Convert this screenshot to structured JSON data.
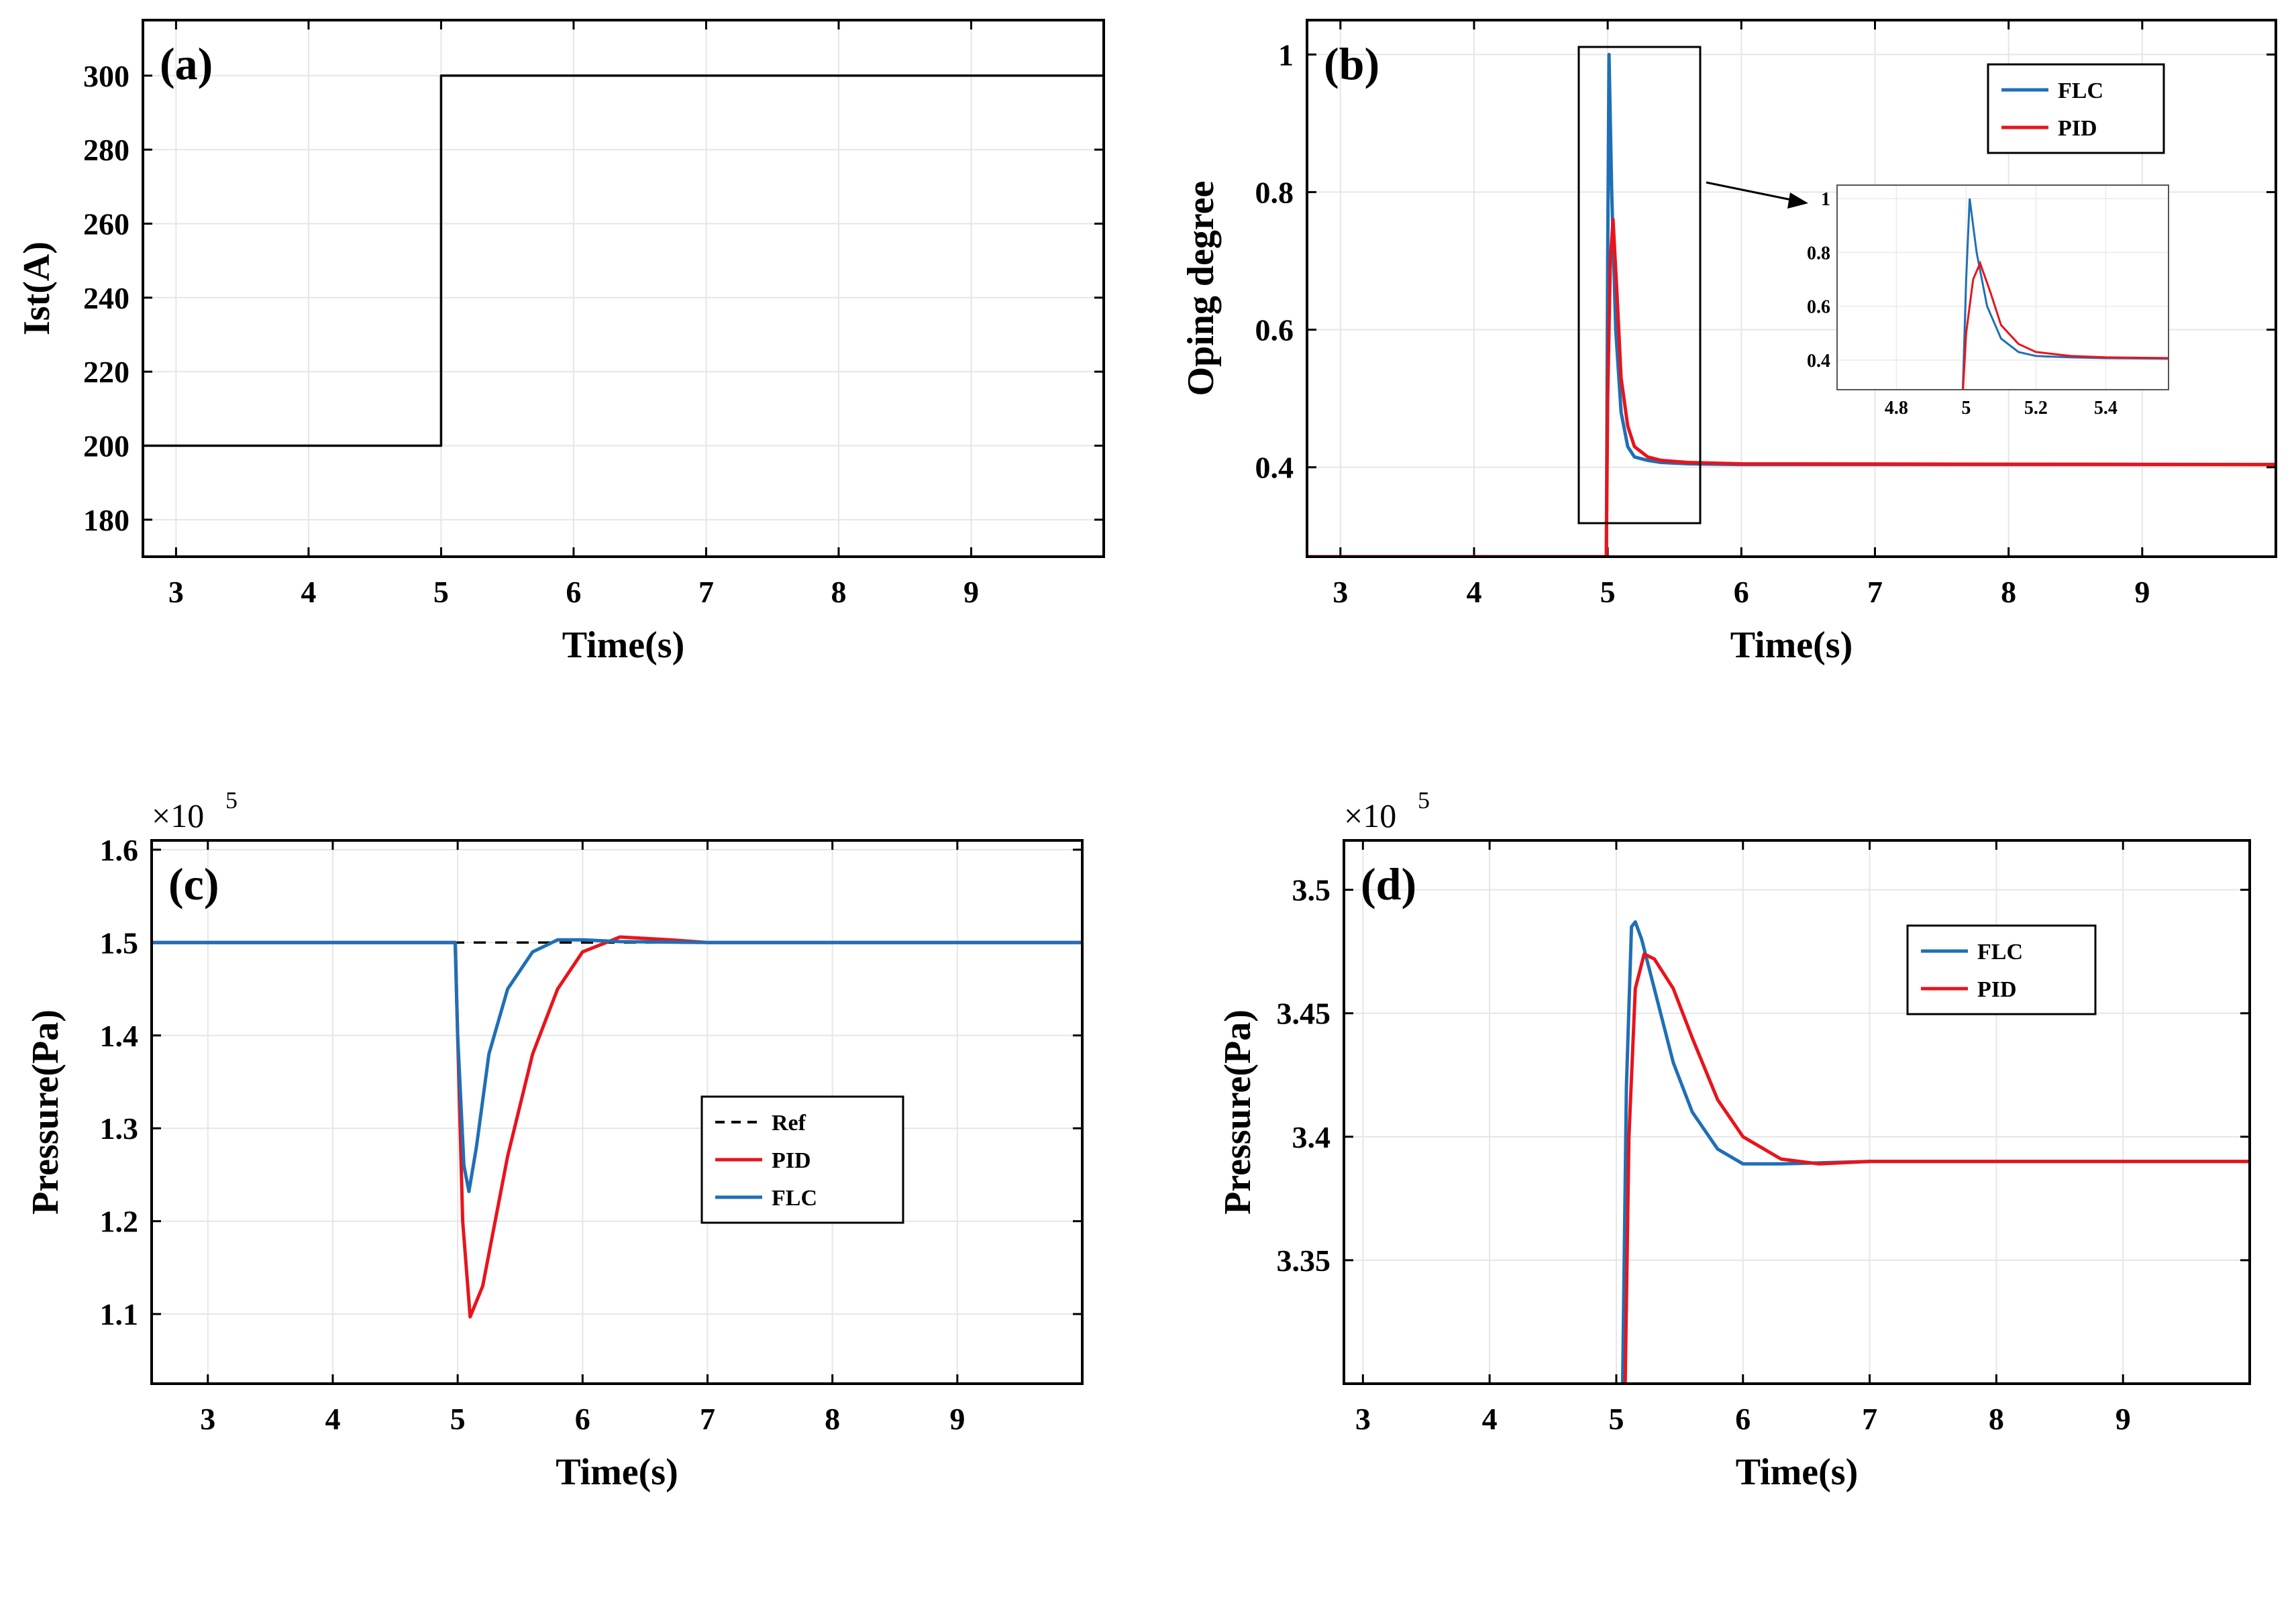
{
  "chart_data": [
    {
      "id": "a",
      "type": "line",
      "tag": "(a)",
      "xlabel": "Time(s)",
      "ylabel": "Ist(A)",
      "xlim": [
        2.75,
        10
      ],
      "ylim": [
        170,
        315
      ],
      "xticks": [
        3,
        4,
        5,
        6,
        7,
        8,
        9
      ],
      "yticks": [
        180,
        200,
        220,
        240,
        260,
        280,
        300
      ],
      "grid": true,
      "series": [
        {
          "name": "Ist",
          "color": "#000000",
          "x": [
            2.75,
            5.0,
            5.0,
            10.0
          ],
          "y": [
            200,
            200,
            300,
            300
          ]
        }
      ]
    },
    {
      "id": "b",
      "type": "line",
      "tag": "(b)",
      "xlabel": "Time(s)",
      "ylabel": "Oping degree",
      "xlim": [
        2.75,
        10
      ],
      "ylim": [
        0.27,
        1.05
      ],
      "xticks": [
        3,
        4,
        5,
        6,
        7,
        8,
        9
      ],
      "yticks": [
        0.4,
        0.6,
        0.8,
        1
      ],
      "ytick_labels": [
        "0.4",
        "0.6",
        "0.8",
        "1"
      ],
      "grid": true,
      "legend": {
        "position": "top-right",
        "entries": [
          "FLC",
          "PID"
        ]
      },
      "zoom_box": {
        "x_range": [
          4.75,
          5.6
        ],
        "y_range": [
          0.27,
          1.01
        ]
      },
      "series": [
        {
          "name": "FLC",
          "color": "#1f6fb5",
          "x": [
            2.75,
            4.99,
            5.0,
            5.01,
            5.03,
            5.06,
            5.1,
            5.15,
            5.2,
            5.3,
            5.4,
            5.6,
            6.0,
            10.0
          ],
          "y": [
            0.27,
            0.27,
            0.7,
            1.0,
            0.8,
            0.6,
            0.48,
            0.43,
            0.415,
            0.41,
            0.407,
            0.405,
            0.404,
            0.404
          ]
        },
        {
          "name": "PID",
          "color": "#e8141c",
          "x": [
            2.75,
            4.99,
            5.0,
            5.02,
            5.04,
            5.07,
            5.1,
            5.15,
            5.2,
            5.3,
            5.4,
            5.6,
            6.0,
            10.0
          ],
          "y": [
            0.27,
            0.27,
            0.5,
            0.7,
            0.76,
            0.65,
            0.53,
            0.46,
            0.43,
            0.415,
            0.41,
            0.407,
            0.405,
            0.404
          ]
        }
      ],
      "inset": {
        "xlim": [
          4.63,
          5.58
        ],
        "ylim": [
          0.29,
          1.05
        ],
        "xticks": [
          4.8,
          5,
          5.2,
          5.4
        ],
        "xtick_labels": [
          "4.8",
          "5",
          "5.2",
          "5.4"
        ],
        "yticks": [
          0.4,
          0.6,
          0.8,
          1
        ],
        "ytick_labels": [
          "0.4",
          "0.6",
          "0.8",
          "1"
        ]
      }
    },
    {
      "id": "c",
      "type": "line",
      "tag": "(c)",
      "xlabel": "Time(s)",
      "ylabel": "Pressure(Pa)",
      "multiplier": "×10",
      "multiplier_exp": "5",
      "xlim": [
        2.55,
        10
      ],
      "ylim": [
        1.025,
        1.61
      ],
      "xticks": [
        3,
        4,
        5,
        6,
        7,
        8,
        9
      ],
      "yticks": [
        1.1,
        1.2,
        1.3,
        1.4,
        1.5,
        1.6
      ],
      "ytick_labels": [
        "1.1",
        "1.2",
        "1.3",
        "1.4",
        "1.5",
        "1.6"
      ],
      "grid": true,
      "legend": {
        "position": "center-right",
        "entries": [
          "Ref",
          "PID",
          "FLC"
        ]
      },
      "series": [
        {
          "name": "Ref",
          "color": "#000000",
          "dashed": true,
          "x": [
            2.55,
            10.0
          ],
          "y": [
            1.5,
            1.5
          ]
        },
        {
          "name": "PID",
          "color": "#e8141c",
          "x": [
            2.55,
            4.98,
            5.0,
            5.04,
            5.1,
            5.2,
            5.4,
            5.6,
            5.8,
            6.0,
            6.3,
            6.7,
            7.0,
            10.0
          ],
          "y": [
            1.5,
            1.5,
            1.4,
            1.2,
            1.097,
            1.13,
            1.27,
            1.38,
            1.45,
            1.49,
            1.506,
            1.503,
            1.5,
            1.5
          ]
        },
        {
          "name": "FLC",
          "color": "#1f6fb5",
          "x": [
            2.55,
            4.98,
            5.0,
            5.05,
            5.09,
            5.15,
            5.25,
            5.4,
            5.6,
            5.8,
            6.0,
            6.3,
            7.0,
            10.0
          ],
          "y": [
            1.5,
            1.5,
            1.4,
            1.26,
            1.232,
            1.28,
            1.38,
            1.45,
            1.49,
            1.503,
            1.503,
            1.501,
            1.5,
            1.5
          ]
        }
      ]
    },
    {
      "id": "d",
      "type": "line",
      "tag": "(d)",
      "xlabel": "Time(s)",
      "ylabel": "Pressure(Pa)",
      "multiplier": "×10",
      "multiplier_exp": "5",
      "xlim": [
        2.85,
        10
      ],
      "ylim": [
        3.3,
        3.52
      ],
      "xticks": [
        3,
        4,
        5,
        6,
        7,
        8,
        9
      ],
      "yticks": [
        3.35,
        3.4,
        3.45,
        3.5
      ],
      "ytick_labels": [
        "3.35",
        "3.4",
        "3.45",
        "3.5"
      ],
      "grid": true,
      "legend": {
        "position": "top-right",
        "entries": [
          "FLC",
          "PID"
        ]
      },
      "series": [
        {
          "name": "FLC",
          "color": "#1f6fb5",
          "x": [
            5.05,
            5.08,
            5.12,
            5.15,
            5.2,
            5.3,
            5.45,
            5.6,
            5.8,
            6.0,
            6.3,
            7.0,
            10.0
          ],
          "y": [
            3.3,
            3.42,
            3.485,
            3.487,
            3.48,
            3.46,
            3.43,
            3.41,
            3.395,
            3.389,
            3.389,
            3.39,
            3.39
          ]
        },
        {
          "name": "PID",
          "color": "#e8141c",
          "x": [
            5.07,
            5.1,
            5.15,
            5.22,
            5.3,
            5.45,
            5.6,
            5.8,
            6.0,
            6.3,
            6.6,
            7.0,
            10.0
          ],
          "y": [
            3.3,
            3.4,
            3.46,
            3.474,
            3.472,
            3.46,
            3.44,
            3.415,
            3.4,
            3.391,
            3.389,
            3.39,
            3.39
          ]
        }
      ]
    }
  ]
}
